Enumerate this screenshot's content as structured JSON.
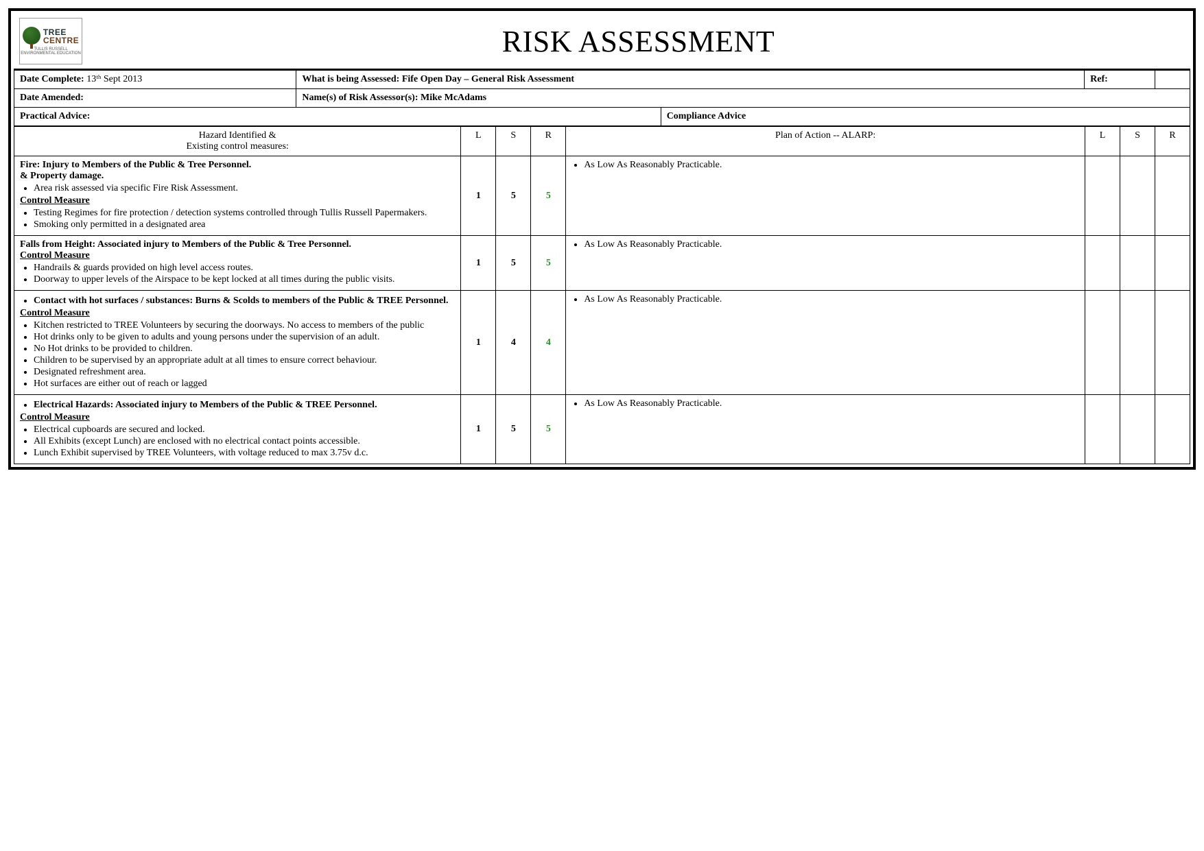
{
  "logo": {
    "line1": "TREE",
    "line2": "CENTRE",
    "sub": "TULLIS RUSSELL ENVIRONMENTAL EDUCATION"
  },
  "title": "RISK ASSESSMENT",
  "meta_rows": {
    "date_complete_label": "Date Complete:",
    "date_complete_value": "13ᵗʰ Sept 2013",
    "assessed_label": "What is being Assessed:",
    "assessed_value": "Fife Open Day – General Risk Assessment",
    "ref_label": "Ref:",
    "ref_value": "",
    "date_amended_label": "Date Amended:",
    "date_amended_value": "",
    "assessor_label": "Name(s) of Risk Assessor(s):",
    "assessor_value": "Mike McAdams",
    "practical_advice_label": "Practical Advice:",
    "compliance_advice_label": "Compliance Advice"
  },
  "cols": {
    "hazard": "Hazard Identified &\nExisting control measures:",
    "L": "L",
    "S": "S",
    "R": "R",
    "plan": "Plan of Action  -- ALARP:",
    "L2": "L",
    "S2": "S",
    "R2": "R"
  },
  "rows": [
    {
      "hazard_title": "Fire: Injury to Members of the Public & Tree Personnel.",
      "sub_title": "& Property damage.",
      "lines": [
        "Area risk assessed via specific Fire Risk Assessment."
      ],
      "control_label": "Control Measure",
      "controls": [
        "Testing Regimes for fire protection / detection systems controlled through Tullis Russell Papermakers.",
        "Smoking only permitted in a designated area"
      ],
      "L": "1",
      "S": "5",
      "R": "5",
      "plan": "As Low As Reasonably Practicable.",
      "L2": "",
      "S2": "",
      "R2": ""
    },
    {
      "hazard_title": "Falls from Height: Associated injury to Members of the Public & Tree Personnel.",
      "sub_title": "",
      "lines": [],
      "control_label": "Control Measure",
      "controls": [
        "Handrails & guards provided on high level access routes.",
        "Doorway to upper levels of the Airspace to be kept locked at all times during the public visits."
      ],
      "L": "1",
      "S": "5",
      "R": "5",
      "plan": "As Low As Reasonably Practicable.",
      "L2": "",
      "S2": "",
      "R2": ""
    },
    {
      "hazard_title": "",
      "sub_title": "",
      "leading_bullets": [
        "Contact with hot surfaces / substances: Burns & Scolds to members of the Public & TREE Personnel."
      ],
      "control_label": "Control Measure",
      "controls": [
        "Kitchen restricted to TREE Volunteers by securing the doorways. No access to members of the public",
        "Hot drinks only to be given to adults and young persons under the supervision of an adult.",
        "No Hot drinks to be provided to children.",
        "Children to be supervised by an appropriate adult at all times to ensure correct behaviour.",
        "Designated refreshment area.",
        "Hot surfaces are either out of reach or lagged"
      ],
      "L": "1",
      "S": "4",
      "R": "4",
      "plan": "As Low As Reasonably Practicable.",
      "L2": "",
      "S2": "",
      "R2": ""
    },
    {
      "hazard_title": "",
      "sub_title": "",
      "leading_bullets": [
        "Electrical Hazards: Associated injury to Members of the Public & TREE Personnel."
      ],
      "control_label": "Control Measure",
      "controls": [
        "Electrical cupboards are secured and locked.",
        "All Exhibits (except Lunch) are enclosed with no electrical contact points accessible.",
        "Lunch Exhibit supervised by TREE Volunteers, with voltage reduced to max 3.75v d.c."
      ],
      "L": "1",
      "S": "5",
      "R": "5",
      "plan": "As Low As Reasonably Practicable.",
      "L2": "",
      "S2": "",
      "R2": ""
    }
  ],
  "styling": {
    "title_fontsize": 44,
    "body_fontsize": 14,
    "border_color": "#000000",
    "green": "#2e8b2e",
    "background": "#ffffff"
  }
}
